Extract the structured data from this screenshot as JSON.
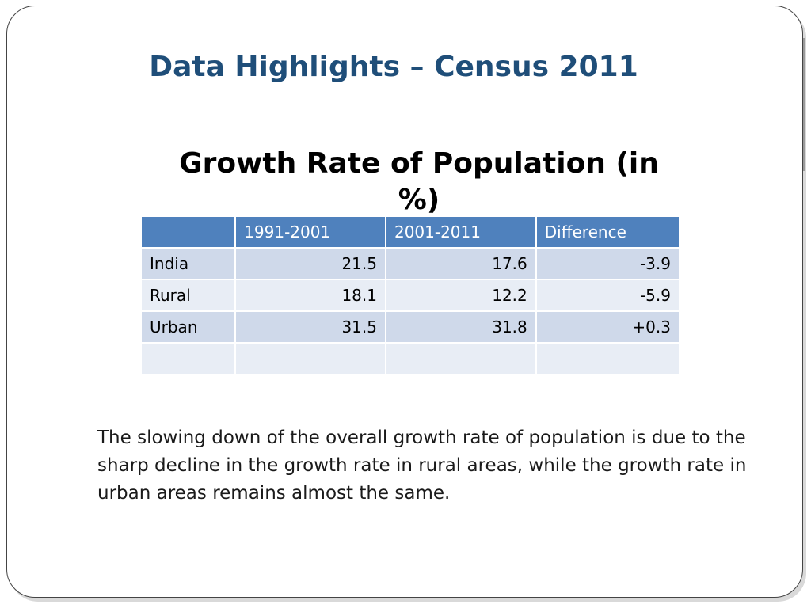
{
  "slide": {
    "title": "Data Highlights – Census 2011",
    "table_title": "Growth Rate of Population (in %)",
    "body": "The slowing down of the overall growth rate of population is due to the sharp decline in the growth rate in rural areas, while the growth rate in urban areas remains almost the same."
  },
  "chart_data": {
    "type": "table",
    "title": "Growth Rate of Population (in %)",
    "columns": [
      "",
      "1991-2001",
      "2001-2011",
      "Difference"
    ],
    "rows": [
      [
        "India",
        "21.5",
        "17.6",
        "-3.9"
      ],
      [
        "Rural",
        "18.1",
        "12.2",
        "-5.9"
      ],
      [
        "Urban",
        "31.5",
        "31.8",
        "+0.3"
      ],
      [
        "",
        "",
        "",
        ""
      ]
    ]
  },
  "colors": {
    "title": "#1f4e79",
    "header_bg": "#4f81bd",
    "row_odd_bg": "#cfd9ea",
    "row_even_bg": "#e8edf5"
  }
}
